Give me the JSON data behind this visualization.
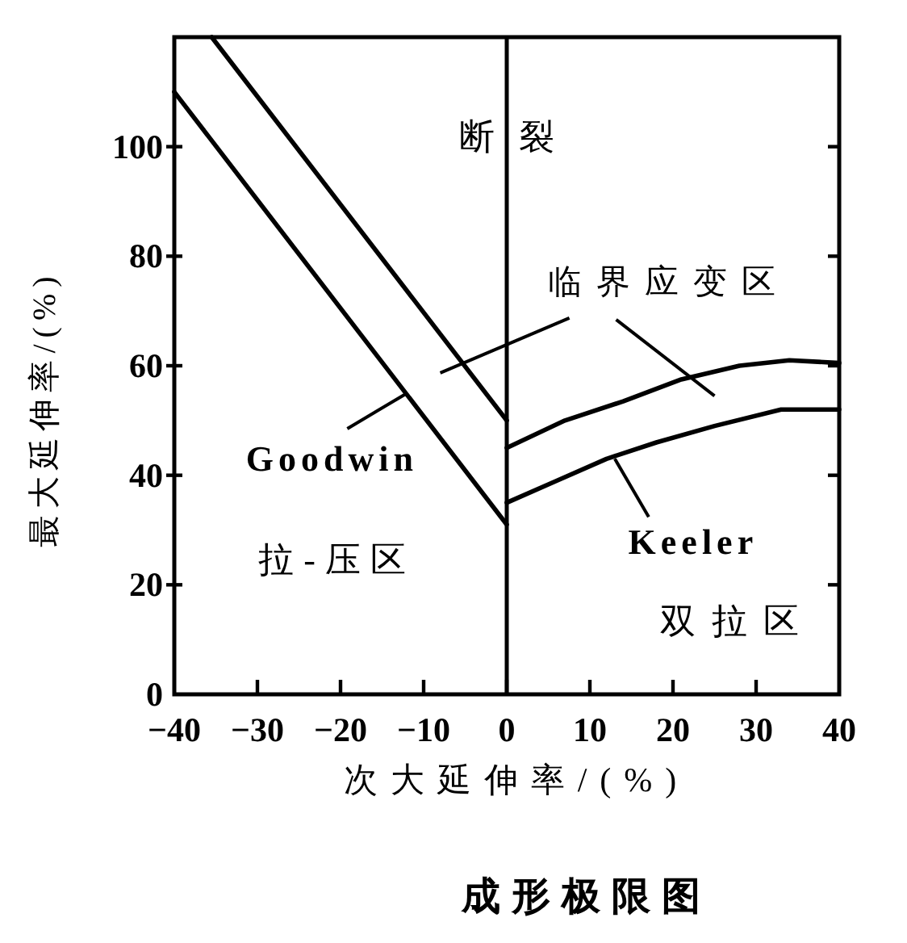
{
  "chart_data": {
    "type": "line",
    "title": "成形极限图",
    "xlabel": "次大延伸率/(%)",
    "ylabel": "最大延伸率/(%)",
    "xlim": [
      -40,
      40
    ],
    "ylim": [
      0,
      120
    ],
    "xticks": [
      -40,
      -30,
      -20,
      -10,
      0,
      10,
      20,
      30,
      40
    ],
    "yticks": [
      0,
      20,
      40,
      60,
      80,
      100
    ],
    "grid": false,
    "marker": "none",
    "line_style": "solid",
    "series": [
      {
        "color": "#000000",
        "x": [
          -40,
          0
        ],
        "values": [
          110,
          31
        ]
      },
      {
        "color": "#000000",
        "x": [
          -35.5,
          0
        ],
        "values": [
          120,
          50
        ]
      },
      {
        "color": "#000000",
        "x": [
          0,
          6,
          12,
          18,
          25,
          33,
          40
        ],
        "values": [
          35,
          39,
          43,
          46,
          49,
          52,
          52
        ]
      },
      {
        "color": "#000000",
        "x": [
          0,
          7,
          14,
          21,
          28,
          34,
          40
        ],
        "values": [
          45,
          50,
          53.5,
          57.5,
          60,
          61,
          60.5
        ]
      }
    ],
    "ref_lines": [
      {
        "axis": "x",
        "value": 0,
        "color": "#000000"
      }
    ],
    "annotations": [
      "断裂",
      "临界应变区",
      {
        "text": "Goodwin",
        "x": -12,
        "y": 55
      },
      {
        "text": "Keeler",
        "x": 13,
        "y": 43
      },
      "拉-压区",
      "双拉区"
    ]
  }
}
